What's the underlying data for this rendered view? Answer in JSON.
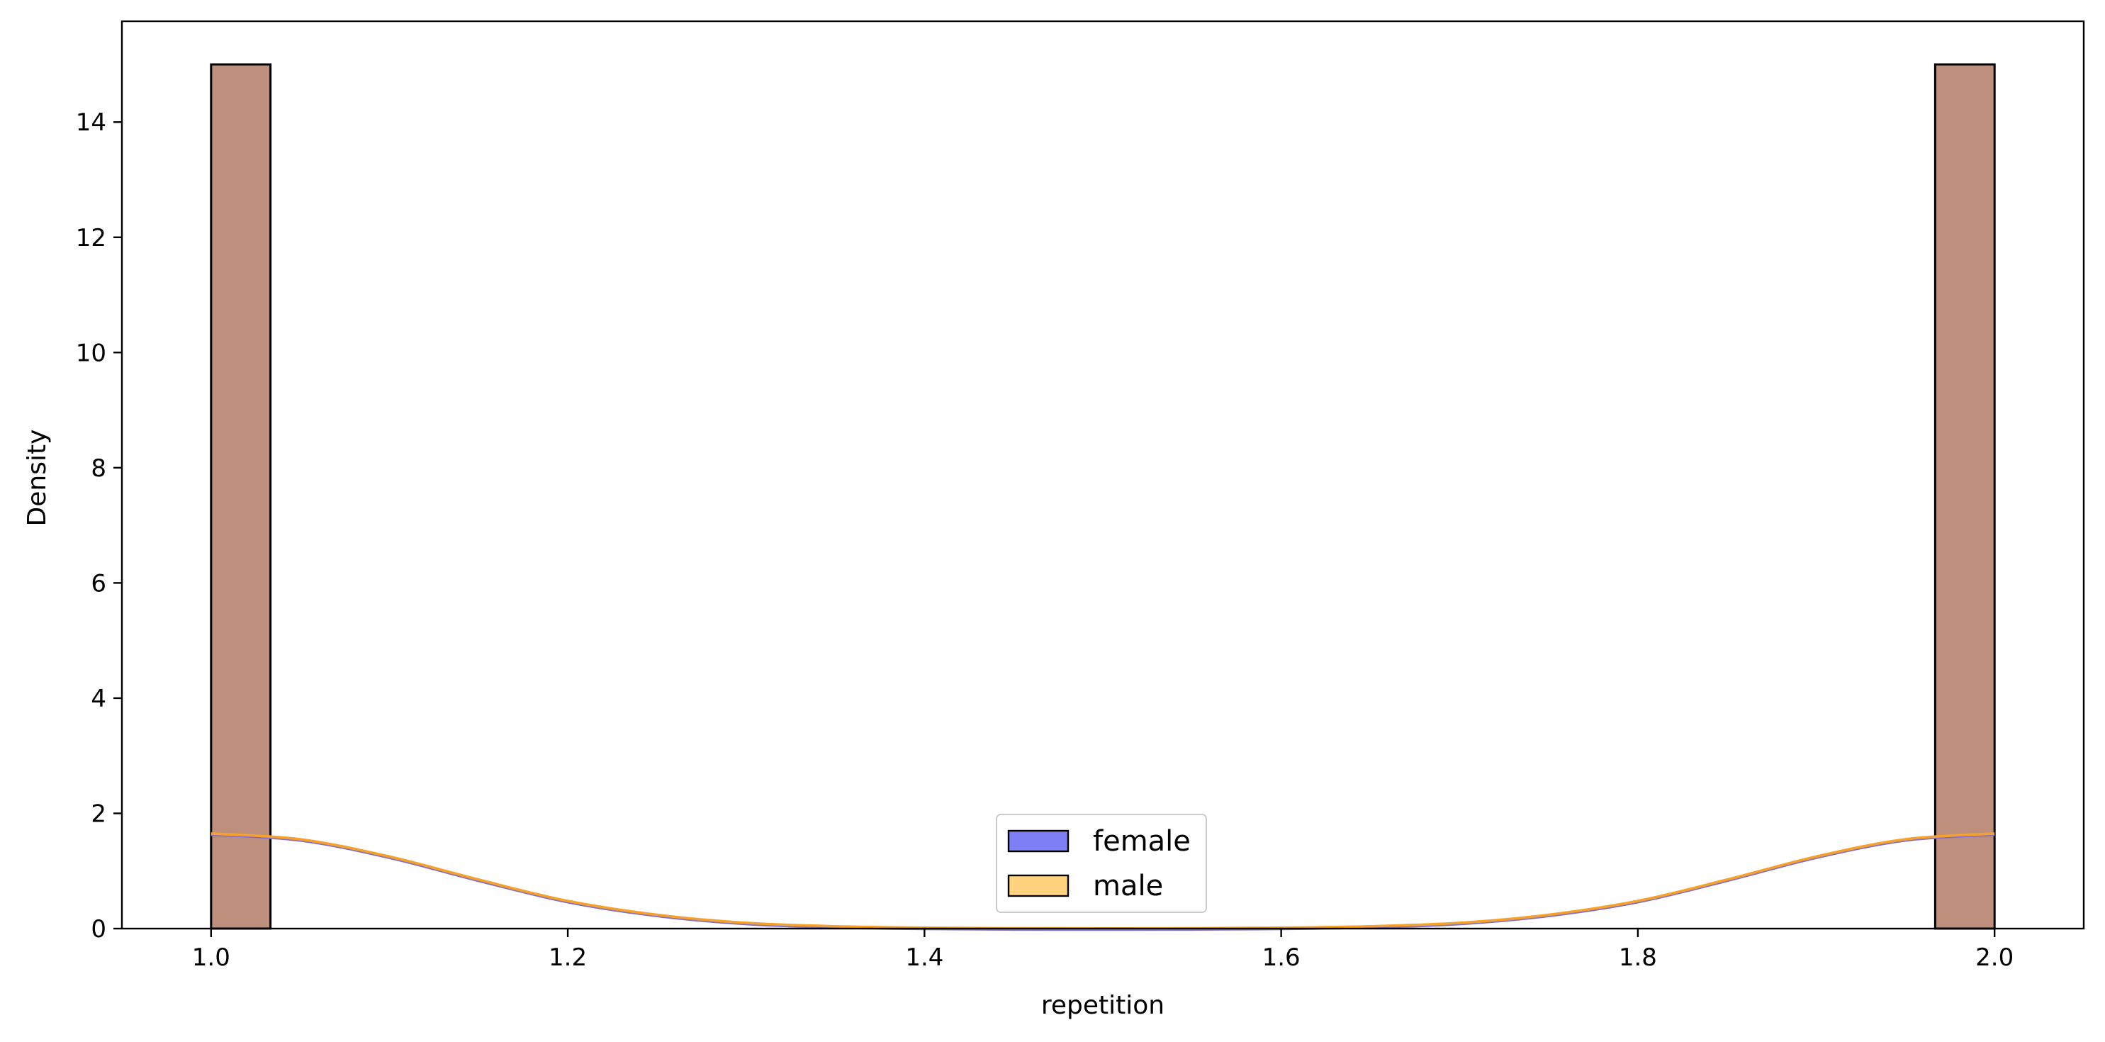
{
  "chart_data": {
    "type": "bar",
    "title": "",
    "xlabel": "repetition",
    "ylabel": "Density",
    "xlim": [
      0.95,
      2.05
    ],
    "ylim": [
      0,
      15.75
    ],
    "xticks": [
      "1.0",
      "1.2",
      "1.4",
      "1.6",
      "1.8",
      "2.0"
    ],
    "yticks": [
      "0",
      "2",
      "4",
      "6",
      "8",
      "10",
      "12",
      "14"
    ],
    "grid": false,
    "legend_position": "lower-center",
    "bins": [
      {
        "start": 1.0,
        "end": 1.0333,
        "value": 15
      },
      {
        "start": 1.9667,
        "end": 2.0,
        "value": 15
      }
    ],
    "series": [
      {
        "name": "female",
        "color": "#7f7ff5",
        "kde_color": "#7f6fd0"
      },
      {
        "name": "male",
        "color": "#ffd280",
        "kde_color": "#f5a12a"
      }
    ],
    "overlap_color": "#bf8f7d",
    "kde": {
      "x": [
        1.0,
        1.05,
        1.1,
        1.15,
        1.2,
        1.25,
        1.3,
        1.35,
        1.4,
        1.45,
        1.5,
        1.55,
        1.6,
        1.65,
        1.7,
        1.75,
        1.8,
        1.85,
        1.9,
        1.95,
        2.0
      ],
      "y": [
        1.65,
        1.55,
        1.25,
        0.85,
        0.48,
        0.24,
        0.1,
        0.04,
        0.015,
        0.005,
        0.003,
        0.005,
        0.015,
        0.04,
        0.1,
        0.24,
        0.48,
        0.85,
        1.25,
        1.55,
        1.65
      ]
    }
  }
}
